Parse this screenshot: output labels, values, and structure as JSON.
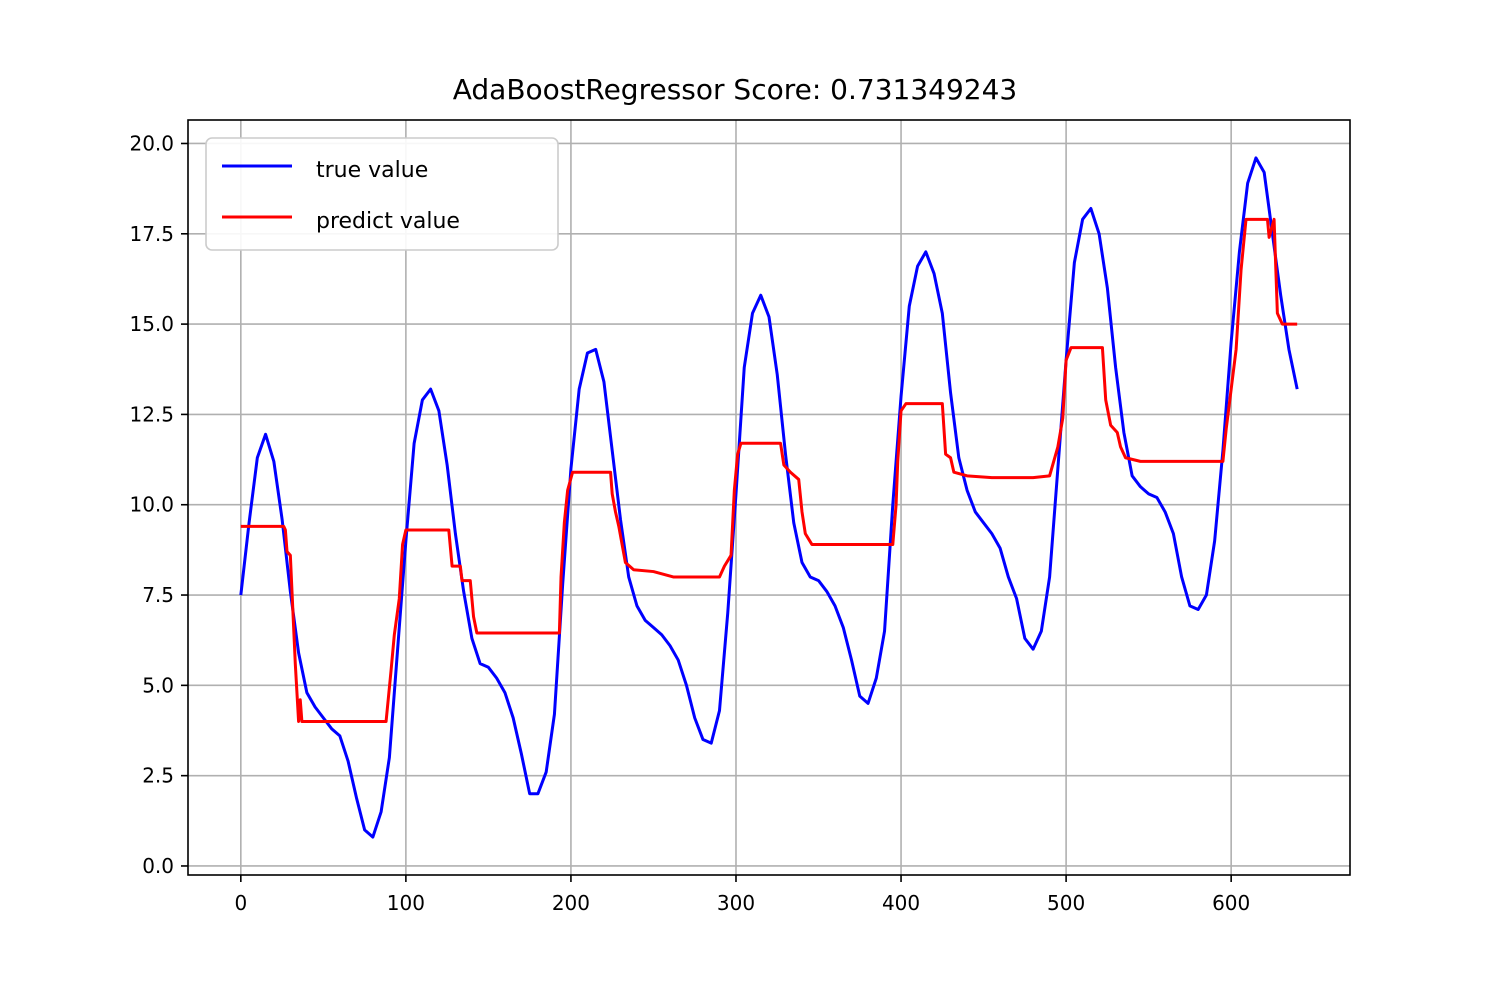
{
  "chart_data": {
    "type": "line",
    "title": "AdaBoostRegressor  Score:     0.731349243",
    "xlabel": "",
    "ylabel": "",
    "xlim": [
      -32,
      672
    ],
    "ylim": [
      -0.25,
      20.65
    ],
    "xticks": [
      0,
      100,
      200,
      300,
      400,
      500,
      600
    ],
    "xtick_labels": [
      "0",
      "100",
      "200",
      "300",
      "400",
      "500",
      "600"
    ],
    "yticks": [
      0,
      2.5,
      5,
      7.5,
      10,
      12.5,
      15,
      17.5,
      20
    ],
    "ytick_labels": [
      "0.0",
      "2.5",
      "5.0",
      "7.5",
      "10.0",
      "12.5",
      "15.0",
      "17.5",
      "20.0"
    ],
    "grid": true,
    "legend_position": "upper left",
    "series": [
      {
        "name": "true value",
        "color": "#0000ff",
        "points": [
          [
            0,
            7.5
          ],
          [
            5,
            9.5
          ],
          [
            10,
            11.3
          ],
          [
            15,
            11.95
          ],
          [
            20,
            11.2
          ],
          [
            25,
            9.6
          ],
          [
            30,
            7.6
          ],
          [
            35,
            5.9
          ],
          [
            40,
            4.8
          ],
          [
            45,
            4.4
          ],
          [
            50,
            4.1
          ],
          [
            55,
            3.8
          ],
          [
            60,
            3.6
          ],
          [
            65,
            2.9
          ],
          [
            70,
            1.9
          ],
          [
            75,
            1.0
          ],
          [
            80,
            0.8
          ],
          [
            85,
            1.5
          ],
          [
            90,
            3.0
          ],
          [
            95,
            6.0
          ],
          [
            100,
            9.0
          ],
          [
            105,
            11.7
          ],
          [
            110,
            12.9
          ],
          [
            115,
            13.2
          ],
          [
            120,
            12.6
          ],
          [
            125,
            11.1
          ],
          [
            130,
            9.2
          ],
          [
            135,
            7.6
          ],
          [
            140,
            6.3
          ],
          [
            145,
            5.6
          ],
          [
            150,
            5.5
          ],
          [
            155,
            5.2
          ],
          [
            160,
            4.8
          ],
          [
            165,
            4.1
          ],
          [
            170,
            3.1
          ],
          [
            175,
            2.0
          ],
          [
            180,
            2.0
          ],
          [
            185,
            2.6
          ],
          [
            190,
            4.2
          ],
          [
            195,
            7.8
          ],
          [
            200,
            11.0
          ],
          [
            205,
            13.2
          ],
          [
            210,
            14.2
          ],
          [
            215,
            14.3
          ],
          [
            220,
            13.4
          ],
          [
            225,
            11.5
          ],
          [
            230,
            9.6
          ],
          [
            235,
            8.0
          ],
          [
            240,
            7.2
          ],
          [
            245,
            6.8
          ],
          [
            250,
            6.6
          ],
          [
            255,
            6.4
          ],
          [
            260,
            6.1
          ],
          [
            265,
            5.7
          ],
          [
            270,
            5.0
          ],
          [
            275,
            4.1
          ],
          [
            280,
            3.5
          ],
          [
            285,
            3.4
          ],
          [
            290,
            4.3
          ],
          [
            295,
            7.0
          ],
          [
            300,
            10.3
          ],
          [
            305,
            13.8
          ],
          [
            310,
            15.3
          ],
          [
            315,
            15.8
          ],
          [
            320,
            15.2
          ],
          [
            325,
            13.6
          ],
          [
            330,
            11.4
          ],
          [
            335,
            9.5
          ],
          [
            340,
            8.4
          ],
          [
            345,
            8.0
          ],
          [
            350,
            7.9
          ],
          [
            355,
            7.6
          ],
          [
            360,
            7.2
          ],
          [
            365,
            6.6
          ],
          [
            370,
            5.7
          ],
          [
            375,
            4.7
          ],
          [
            380,
            4.5
          ],
          [
            385,
            5.2
          ],
          [
            390,
            6.5
          ],
          [
            395,
            10.0
          ],
          [
            400,
            13.0
          ],
          [
            405,
            15.5
          ],
          [
            410,
            16.6
          ],
          [
            415,
            17.0
          ],
          [
            420,
            16.4
          ],
          [
            425,
            15.3
          ],
          [
            430,
            13.1
          ],
          [
            435,
            11.3
          ],
          [
            440,
            10.4
          ],
          [
            445,
            9.8
          ],
          [
            450,
            9.5
          ],
          [
            455,
            9.2
          ],
          [
            460,
            8.8
          ],
          [
            465,
            8.0
          ],
          [
            470,
            7.4
          ],
          [
            475,
            6.3
          ],
          [
            480,
            6.0
          ],
          [
            485,
            6.5
          ],
          [
            490,
            8.0
          ],
          [
            495,
            11.0
          ],
          [
            500,
            14.0
          ],
          [
            505,
            16.7
          ],
          [
            510,
            17.9
          ],
          [
            515,
            18.2
          ],
          [
            520,
            17.5
          ],
          [
            525,
            16.0
          ],
          [
            530,
            13.8
          ],
          [
            535,
            12.0
          ],
          [
            540,
            10.8
          ],
          [
            545,
            10.5
          ],
          [
            550,
            10.3
          ],
          [
            555,
            10.2
          ],
          [
            560,
            9.8
          ],
          [
            565,
            9.2
          ],
          [
            570,
            8.0
          ],
          [
            575,
            7.2
          ],
          [
            580,
            7.1
          ],
          [
            585,
            7.5
          ],
          [
            590,
            9.0
          ],
          [
            595,
            11.5
          ],
          [
            600,
            14.5
          ],
          [
            605,
            17.0
          ],
          [
            610,
            18.9
          ],
          [
            615,
            19.6
          ],
          [
            620,
            19.2
          ],
          [
            625,
            17.5
          ],
          [
            630,
            15.8
          ],
          [
            635,
            14.3
          ],
          [
            640,
            13.2
          ]
        ]
      },
      {
        "name": "predict value",
        "color": "#ff0000",
        "points": [
          [
            0,
            9.4
          ],
          [
            26,
            9.4
          ],
          [
            27,
            9.3
          ],
          [
            28,
            8.7
          ],
          [
            30,
            8.6
          ],
          [
            31,
            7.6
          ],
          [
            33,
            5.6
          ],
          [
            35,
            4.0
          ],
          [
            36,
            4.6
          ],
          [
            37,
            4.0
          ],
          [
            88,
            4.0
          ],
          [
            91,
            5.4
          ],
          [
            93,
            6.4
          ],
          [
            96,
            7.4
          ],
          [
            98,
            8.9
          ],
          [
            100,
            9.3
          ],
          [
            126,
            9.3
          ],
          [
            127,
            8.8
          ],
          [
            128,
            8.3
          ],
          [
            133,
            8.3
          ],
          [
            134,
            7.9
          ],
          [
            139,
            7.9
          ],
          [
            141,
            6.9
          ],
          [
            143,
            6.45
          ],
          [
            193,
            6.45
          ],
          [
            194,
            8.0
          ],
          [
            196,
            9.5
          ],
          [
            198,
            10.4
          ],
          [
            201,
            10.9
          ],
          [
            224,
            10.9
          ],
          [
            225,
            10.3
          ],
          [
            227,
            9.8
          ],
          [
            229,
            9.4
          ],
          [
            231,
            8.9
          ],
          [
            233,
            8.4
          ],
          [
            238,
            8.2
          ],
          [
            250,
            8.15
          ],
          [
            262,
            8.0
          ],
          [
            290,
            8.0
          ],
          [
            293,
            8.3
          ],
          [
            297,
            8.6
          ],
          [
            299,
            10.4
          ],
          [
            301,
            11.4
          ],
          [
            303,
            11.7
          ],
          [
            327,
            11.7
          ],
          [
            329,
            11.1
          ],
          [
            333,
            10.9
          ],
          [
            338,
            10.7
          ],
          [
            340,
            9.8
          ],
          [
            342,
            9.2
          ],
          [
            346,
            8.9
          ],
          [
            395,
            8.9
          ],
          [
            397,
            10.0
          ],
          [
            398,
            11.2
          ],
          [
            400,
            12.6
          ],
          [
            403,
            12.8
          ],
          [
            425,
            12.8
          ],
          [
            427,
            11.4
          ],
          [
            430,
            11.3
          ],
          [
            432,
            10.9
          ],
          [
            440,
            10.8
          ],
          [
            455,
            10.75
          ],
          [
            480,
            10.75
          ],
          [
            490,
            10.8
          ],
          [
            495,
            11.6
          ],
          [
            498,
            12.4
          ],
          [
            500,
            14.0
          ],
          [
            503,
            14.35
          ],
          [
            522,
            14.35
          ],
          [
            524,
            12.9
          ],
          [
            527,
            12.2
          ],
          [
            531,
            12.0
          ],
          [
            533,
            11.6
          ],
          [
            536,
            11.3
          ],
          [
            545,
            11.2
          ],
          [
            595,
            11.2
          ],
          [
            597,
            12.1
          ],
          [
            600,
            13.2
          ],
          [
            603,
            14.3
          ],
          [
            606,
            16.5
          ],
          [
            609,
            17.9
          ],
          [
            622,
            17.9
          ],
          [
            623,
            17.4
          ],
          [
            626,
            17.9
          ],
          [
            628,
            15.3
          ],
          [
            631,
            15.0
          ],
          [
            640,
            15.0
          ]
        ]
      }
    ]
  }
}
